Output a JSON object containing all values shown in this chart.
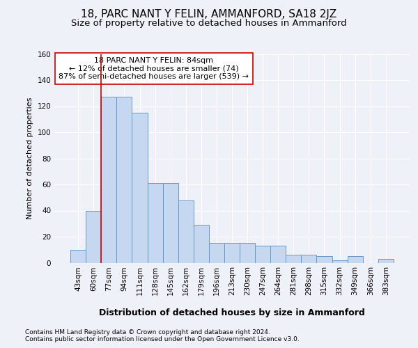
{
  "title": "18, PARC NANT Y FELIN, AMMANFORD, SA18 2JZ",
  "subtitle": "Size of property relative to detached houses in Ammanford",
  "xlabel": "Distribution of detached houses by size in Ammanford",
  "ylabel": "Number of detached properties",
  "categories": [
    "43sqm",
    "60sqm",
    "77sqm",
    "94sqm",
    "111sqm",
    "128sqm",
    "145sqm",
    "162sqm",
    "179sqm",
    "196sqm",
    "213sqm",
    "230sqm",
    "247sqm",
    "264sqm",
    "281sqm",
    "298sqm",
    "315sqm",
    "332sqm",
    "349sqm",
    "366sqm",
    "383sqm"
  ],
  "values": [
    10,
    40,
    127,
    127,
    115,
    61,
    61,
    48,
    29,
    15,
    15,
    15,
    13,
    13,
    6,
    6,
    5,
    2,
    5,
    0,
    3
  ],
  "bar_color": "#c5d8ef",
  "bar_edge_color": "#6699cc",
  "property_line_color": "#cc0000",
  "property_line_index": 1.5,
  "ylim": [
    0,
    160
  ],
  "yticks": [
    0,
    20,
    40,
    60,
    80,
    100,
    120,
    140,
    160
  ],
  "annotation_text": "18 PARC NANT Y FELIN: 84sqm\n← 12% of detached houses are smaller (74)\n87% of semi-detached houses are larger (539) →",
  "annotation_box_facecolor": "#ffffff",
  "annotation_box_edgecolor": "#cc0000",
  "footer_line1": "Contains HM Land Registry data © Crown copyright and database right 2024.",
  "footer_line2": "Contains public sector information licensed under the Open Government Licence v3.0.",
  "background_color": "#eef2f8",
  "grid_color": "#ffffff",
  "title_fontsize": 11,
  "subtitle_fontsize": 9.5,
  "tick_fontsize": 7.5,
  "ylabel_fontsize": 8,
  "xlabel_fontsize": 9,
  "annotation_fontsize": 8,
  "footer_fontsize": 6.5
}
